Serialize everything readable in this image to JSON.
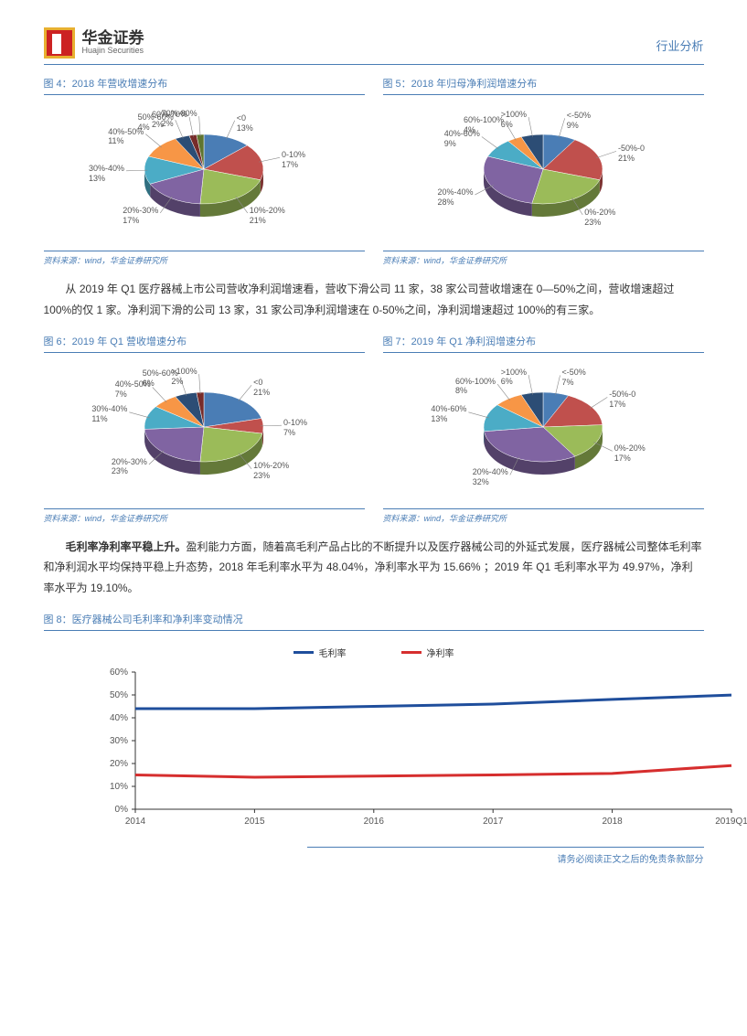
{
  "header": {
    "company_cn": "华金证券",
    "company_en": "Huajin Securities",
    "category": "行业分析"
  },
  "charts": {
    "c4": {
      "title": "图 4：2018 年营收增速分布",
      "type": "pie",
      "slices": [
        {
          "label": "<0",
          "pct": 13,
          "value": 13,
          "color": "#4a7db5"
        },
        {
          "label": "0-10%",
          "pct": 17,
          "value": 17,
          "color": "#c0504d"
        },
        {
          "label": "10%-20%",
          "pct": 21,
          "value": 21,
          "color": "#9bbb59"
        },
        {
          "label": "20%-30%",
          "pct": 17,
          "value": 17,
          "color": "#8064a2"
        },
        {
          "label": "30%-40%",
          "pct": 13,
          "value": 13,
          "color": "#4bacc6"
        },
        {
          "label": "40%-50%",
          "pct": 11,
          "value": 11,
          "color": "#f79646"
        },
        {
          "label": "50%-60%",
          "pct": 4,
          "value": 4,
          "color": "#2c4d75"
        },
        {
          "label": "60%-70%",
          "pct": 2,
          "value": 2,
          "color": "#772c2a"
        },
        {
          "label": "70%-80%",
          "pct": 2,
          "value": 2,
          "color": "#5f7530"
        }
      ],
      "source": "资料来源：wind，华金证券研究所"
    },
    "c5": {
      "title": "图 5：2018 年归母净利润增速分布",
      "type": "pie",
      "slices": [
        {
          "label": "<-50%",
          "pct": 9,
          "value": 9,
          "color": "#4a7db5"
        },
        {
          "label": "-50%-0",
          "pct": 21,
          "value": 21,
          "color": "#c0504d"
        },
        {
          "label": "0%-20%",
          "pct": 23,
          "value": 23,
          "color": "#9bbb59"
        },
        {
          "label": "20%-40%",
          "pct": 28,
          "value": 28,
          "color": "#8064a2"
        },
        {
          "label": "40%-60%",
          "pct": 9,
          "value": 9,
          "color": "#4bacc6"
        },
        {
          "label": "60%-100%",
          "pct": 4,
          "value": 4,
          "color": "#f79646"
        },
        {
          "label": ">100%",
          "pct": 6,
          "value": 6,
          "color": "#2c4d75"
        }
      ],
      "source": "资料来源：wind，华金证券研究所"
    },
    "c6": {
      "title": "图 6：2019 年 Q1 营收增速分布",
      "type": "pie",
      "slices": [
        {
          "label": "<0",
          "pct": 21,
          "value": 21,
          "color": "#4a7db5"
        },
        {
          "label": "0-10%",
          "pct": 7,
          "value": 7,
          "color": "#c0504d"
        },
        {
          "label": "10%-20%",
          "pct": 23,
          "value": 23,
          "color": "#9bbb59"
        },
        {
          "label": "20%-30%",
          "pct": 23,
          "value": 23,
          "color": "#8064a2"
        },
        {
          "label": "30%-40%",
          "pct": 11,
          "value": 11,
          "color": "#4bacc6"
        },
        {
          "label": "40%-50%",
          "pct": 7,
          "value": 7,
          "color": "#f79646"
        },
        {
          "label": "50%-60%",
          "pct": 6,
          "value": 6,
          "color": "#2c4d75"
        },
        {
          "label": ">100%",
          "pct": 2,
          "value": 2,
          "color": "#772c2a"
        }
      ],
      "source": "资料来源：wind，华金证券研究所"
    },
    "c7": {
      "title": "图 7：2019 年 Q1 净利润增速分布",
      "type": "pie",
      "slices": [
        {
          "label": "<-50%",
          "pct": 7,
          "value": 7,
          "color": "#4a7db5"
        },
        {
          "label": "-50%-0",
          "pct": 17,
          "value": 17,
          "color": "#c0504d"
        },
        {
          "label": "0%-20%",
          "pct": 17,
          "value": 17,
          "color": "#9bbb59"
        },
        {
          "label": "20%-40%",
          "pct": 32,
          "value": 32,
          "color": "#8064a2"
        },
        {
          "label": "40%-60%",
          "pct": 13,
          "value": 13,
          "color": "#4bacc6"
        },
        {
          "label": "60%-100%",
          "pct": 8,
          "value": 8,
          "color": "#f79646"
        },
        {
          "label": ">100%",
          "pct": 6,
          "value": 6,
          "color": "#2c4d75"
        }
      ],
      "source": "资料来源：wind，华金证券研究所"
    },
    "c8": {
      "title": "图 8：医疗器械公司毛利率和净利率变动情况",
      "type": "line",
      "xlabels": [
        "2014",
        "2015",
        "2016",
        "2017",
        "2018",
        "2019Q1"
      ],
      "ylim": [
        0,
        60
      ],
      "ytick_step": 10,
      "series": [
        {
          "name": "毛利率",
          "color": "#1f4e9c",
          "width": 3,
          "values": [
            44,
            44,
            45,
            46,
            48.04,
            49.97
          ]
        },
        {
          "name": "净利率",
          "color": "#d62e2e",
          "width": 3,
          "values": [
            15,
            14,
            14.5,
            15,
            15.66,
            19.1
          ]
        }
      ],
      "grid_color": "#ccc",
      "axis_color": "#333",
      "label_fontsize": 10
    }
  },
  "paragraphs": {
    "p1": "从 2019 年 Q1 医疗器械上市公司营收净利润增速看，营收下滑公司 11 家，38 家公司营收增速在 0—50%之间，营收增速超过 100%的仅 1 家。净利润下滑的公司 13 家，31 家公司净利润增速在 0-50%之间，净利润增速超过 100%的有三家。",
    "p2_lead": "毛利率净利率平稳上升。",
    "p2_rest": "盈利能力方面，随着高毛利产品占比的不断提升以及医疗器械公司的外延式发展，医疗器械公司整体毛利率和净利润水平均保持平稳上升态势，2018 年毛利率水平为 48.04%，净利率水平为 15.66% ；2019 年 Q1 毛利率水平为 49.97%，净利率水平为 19.10%。"
  },
  "footer": "请务必阅读正文之后的免责条款部分"
}
